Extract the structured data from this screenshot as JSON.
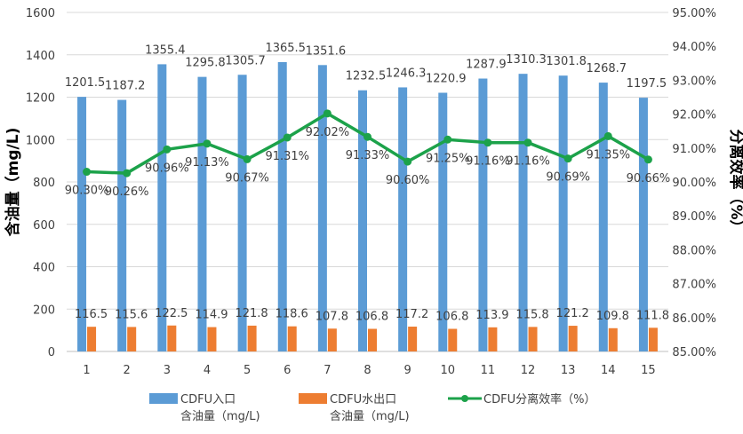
{
  "chart_data": {
    "type": "bar+line",
    "categories": [
      "1",
      "2",
      "3",
      "4",
      "5",
      "6",
      "7",
      "8",
      "9",
      "10",
      "11",
      "12",
      "13",
      "14",
      "15"
    ],
    "left_axis": {
      "title": "含油量（mg/L)",
      "min": 0,
      "max": 1600,
      "step": 200,
      "tick_labels": [
        "0",
        "200",
        "400",
        "600",
        "800",
        "1000",
        "1200",
        "1400",
        "1600"
      ]
    },
    "right_axis": {
      "title": "分离效率（%）",
      "min": 85.0,
      "max": 95.0,
      "step": 1.0,
      "tick_labels": [
        "85.00%",
        "86.00%",
        "87.00%",
        "88.00%",
        "89.00%",
        "90.00%",
        "91.00%",
        "92.00%",
        "93.00%",
        "94.00%",
        "95.00%"
      ]
    },
    "series": [
      {
        "name": "CDFU入口含油量（mg/L)",
        "legend_line1": "CDFU入口",
        "legend_line2": "含油量（mg/L)",
        "type": "bar",
        "axis": "left",
        "color": "#5B9BD5",
        "values": [
          1201.5,
          1187.2,
          1355.4,
          1295.8,
          1305.7,
          1365.5,
          1351.6,
          1232.5,
          1246.3,
          1220.9,
          1287.9,
          1310.3,
          1301.8,
          1268.7,
          1197.5
        ],
        "labels": [
          "1201.5",
          "1187.2",
          "1355.4",
          "1295.8",
          "1305.7",
          "1365.5",
          "1351.6",
          "1232.5",
          "1246.3",
          "1220.9",
          "1287.9",
          "1310.3",
          "1301.8",
          "1268.7",
          "1197.5"
        ]
      },
      {
        "name": "CDFU水出口含油量（mg/L)",
        "legend_line1": "CDFU水出口",
        "legend_line2": "含油量（mg/L)",
        "type": "bar",
        "axis": "left",
        "color": "#ED7D31",
        "values": [
          116.5,
          115.6,
          122.5,
          114.9,
          121.8,
          118.6,
          107.8,
          106.8,
          117.2,
          106.8,
          113.9,
          115.8,
          121.2,
          109.8,
          111.8
        ],
        "labels": [
          "116.5",
          "115.6",
          "122.5",
          "114.9",
          "121.8",
          "118.6",
          "107.8",
          "106.8",
          "117.2",
          "106.8",
          "113.9",
          "115.8",
          "121.2",
          "109.8",
          "111.8"
        ]
      },
      {
        "name": "CDFU分离效率（%）",
        "legend_line1": "CDFU分离效率（%）",
        "type": "line",
        "axis": "right",
        "color": "#1CA24A",
        "values": [
          90.3,
          90.26,
          90.96,
          91.13,
          90.67,
          91.31,
          92.02,
          91.33,
          90.6,
          91.25,
          91.16,
          91.16,
          90.69,
          91.35,
          90.66
        ],
        "labels": [
          "90.30%",
          "90.26%",
          "90.96%",
          "91.13%",
          "90.67%",
          "91.31%",
          "92.02%",
          "91.33%",
          "90.60%",
          "91.25%",
          "91.16%",
          "91.16%",
          "90.69%",
          "91.35%",
          "90.66%"
        ]
      }
    ],
    "gridlines": true,
    "legend_position": "bottom"
  }
}
